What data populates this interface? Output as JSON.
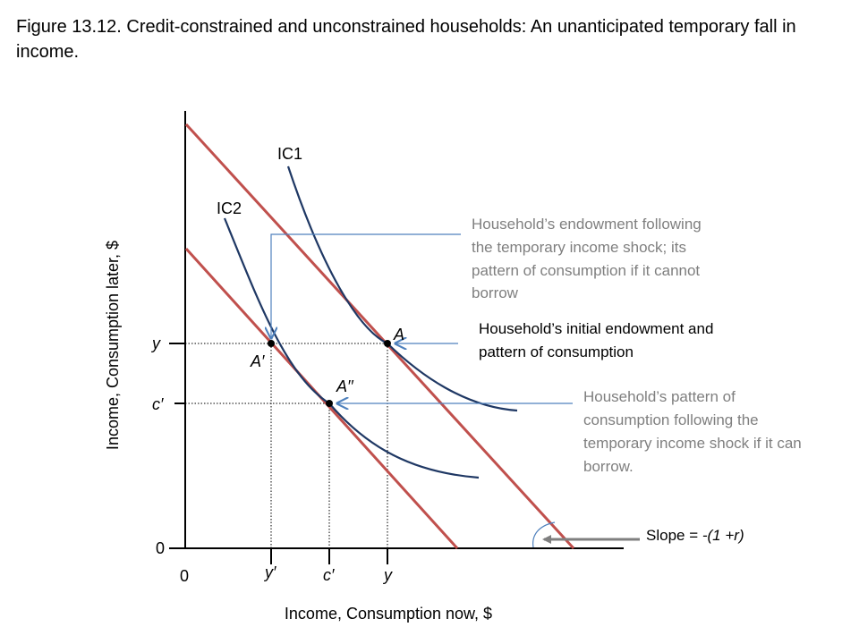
{
  "title": "Figure 13.12. Credit-constrained and unconstrained households: An unanticipated temporary fall in income.",
  "axes": {
    "ylabel": "Income, Consumption later, $",
    "xlabel": "Income, Consumption now, $",
    "x_origin": "0",
    "y_origin": "0",
    "x_ticks": [
      "y′",
      "c′",
      "y"
    ],
    "y_ticks": [
      "y",
      "c′"
    ]
  },
  "curves": {
    "ic1": "IC1",
    "ic2": "IC2"
  },
  "points": {
    "a": "A",
    "a_prime": "A′",
    "a_dprime": "A′′"
  },
  "annotations": {
    "shock_endowment": [
      "Household’s endowment following",
      "the temporary income shock; its",
      "pattern of consumption if it cannot",
      "borrow"
    ],
    "initial_endowment": [
      "Household’s initial endowment and",
      "pattern of consumption"
    ],
    "borrow_consumption": [
      "Household’s pattern of",
      "consumption following the",
      "temporary income shock if it can",
      "borrow."
    ],
    "slope_prefix": "Slope = ",
    "slope_value": "-(1 +r)"
  },
  "colors": {
    "budget_line": "#c0504d",
    "indifference_curve": "#1f3864",
    "arrow": "#4f81bd",
    "slope_arrow": "#7f7f7f",
    "annotation_gray": "#7f7f7f"
  }
}
